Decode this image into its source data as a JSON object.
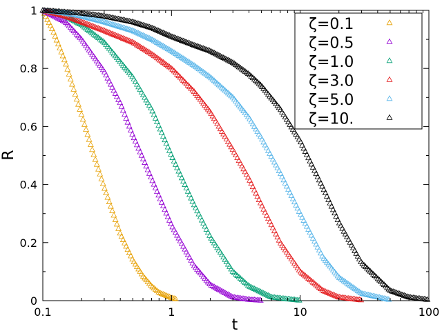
{
  "chart_data": {
    "type": "scatter",
    "title": "",
    "xlabel": "t",
    "ylabel": "R",
    "xscale": "log",
    "xlim": [
      0.1,
      100
    ],
    "ylim": [
      0,
      1
    ],
    "x_ticks": [
      0.1,
      1,
      10,
      100
    ],
    "x_tick_labels": [
      "0.1",
      "1",
      "10",
      "100"
    ],
    "y_ticks": [
      0,
      0.2,
      0.4,
      0.6,
      0.8,
      1
    ],
    "y_tick_labels": [
      "0",
      "0.2",
      "0.4",
      "0.6",
      "0.8",
      "1"
    ],
    "grid": false,
    "marker": "open-triangle",
    "legend_position": "top-right",
    "series": [
      {
        "name": "ζ=0.1",
        "color": "#E69F00",
        "points": [
          [
            0.1,
            1.0
          ],
          [
            0.12,
            0.93
          ],
          [
            0.15,
            0.82
          ],
          [
            0.2,
            0.64
          ],
          [
            0.25,
            0.5
          ],
          [
            0.3,
            0.39
          ],
          [
            0.4,
            0.23
          ],
          [
            0.5,
            0.14
          ],
          [
            0.6,
            0.085
          ],
          [
            0.7,
            0.05
          ],
          [
            0.8,
            0.028
          ],
          [
            1.0,
            0.01
          ],
          [
            1.1,
            0.005
          ]
        ]
      },
      {
        "name": "ζ=0.5",
        "color": "#9400D3",
        "points": [
          [
            0.1,
            1.0
          ],
          [
            0.15,
            0.96
          ],
          [
            0.2,
            0.9
          ],
          [
            0.3,
            0.79
          ],
          [
            0.4,
            0.68
          ],
          [
            0.5,
            0.57
          ],
          [
            0.6,
            0.49
          ],
          [
            0.8,
            0.36
          ],
          [
            1.0,
            0.26
          ],
          [
            1.5,
            0.12
          ],
          [
            2.0,
            0.055
          ],
          [
            3.0,
            0.012
          ],
          [
            4.0,
            0.004
          ],
          [
            5.0,
            0.001
          ]
        ]
      },
      {
        "name": "ζ=1.0",
        "color": "#009E73",
        "points": [
          [
            0.1,
            1.0
          ],
          [
            0.15,
            0.98
          ],
          [
            0.2,
            0.95
          ],
          [
            0.3,
            0.89
          ],
          [
            0.5,
            0.77
          ],
          [
            0.7,
            0.66
          ],
          [
            1.0,
            0.5
          ],
          [
            1.5,
            0.33
          ],
          [
            2.0,
            0.22
          ],
          [
            3.0,
            0.1
          ],
          [
            4.0,
            0.05
          ],
          [
            6.0,
            0.012
          ],
          [
            10.0,
            0.001
          ]
        ]
      },
      {
        "name": "ζ=3.0",
        "color": "#E41A1C",
        "points": [
          [
            0.1,
            1.0
          ],
          [
            0.15,
            0.98
          ],
          [
            0.2,
            0.96
          ],
          [
            0.3,
            0.93
          ],
          [
            0.5,
            0.89
          ],
          [
            0.7,
            0.85
          ],
          [
            1.0,
            0.8
          ],
          [
            1.5,
            0.72
          ],
          [
            2.0,
            0.65
          ],
          [
            3.0,
            0.52
          ],
          [
            4.0,
            0.42
          ],
          [
            5.0,
            0.33
          ],
          [
            7.0,
            0.2
          ],
          [
            10.0,
            0.1
          ],
          [
            15.0,
            0.035
          ],
          [
            20.0,
            0.012
          ],
          [
            30.0,
            0.002
          ]
        ]
      },
      {
        "name": "ζ=5.0",
        "color": "#56B4E9",
        "points": [
          [
            0.1,
            1.0
          ],
          [
            0.15,
            0.99
          ],
          [
            0.2,
            0.98
          ],
          [
            0.3,
            0.96
          ],
          [
            0.5,
            0.93
          ],
          [
            0.7,
            0.9
          ],
          [
            1.0,
            0.86
          ],
          [
            1.5,
            0.81
          ],
          [
            2.0,
            0.77
          ],
          [
            3.0,
            0.7
          ],
          [
            4.0,
            0.63
          ],
          [
            5.0,
            0.56
          ],
          [
            7.0,
            0.44
          ],
          [
            10.0,
            0.3
          ],
          [
            15.0,
            0.15
          ],
          [
            20.0,
            0.08
          ],
          [
            30.0,
            0.025
          ],
          [
            50.0,
            0.003
          ]
        ]
      },
      {
        "name": "ζ=10.",
        "color": "#000000",
        "points": [
          [
            0.1,
            1.0
          ],
          [
            0.2,
            0.99
          ],
          [
            0.3,
            0.98
          ],
          [
            0.5,
            0.96
          ],
          [
            0.7,
            0.94
          ],
          [
            1.0,
            0.91
          ],
          [
            1.5,
            0.88
          ],
          [
            2.0,
            0.86
          ],
          [
            3.0,
            0.82
          ],
          [
            4.0,
            0.78
          ],
          [
            5.0,
            0.74
          ],
          [
            7.0,
            0.66
          ],
          [
            10.0,
            0.55
          ],
          [
            15.0,
            0.39
          ],
          [
            20.0,
            0.27
          ],
          [
            30.0,
            0.13
          ],
          [
            50.0,
            0.035
          ],
          [
            70.0,
            0.012
          ],
          [
            100.0,
            0.003
          ]
        ]
      }
    ]
  }
}
